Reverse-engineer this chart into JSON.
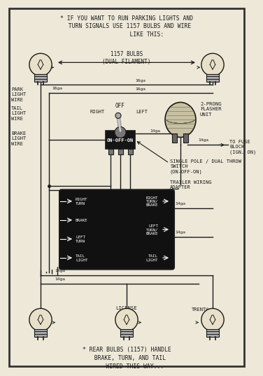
{
  "bg_color": "#ede8d8",
  "border_color": "#444444",
  "top_note": "* IF YOU WANT TO RUN PARKING LIGHTS AND\n  TURN SIGNALS USE 1157 BULBS AND WIRE\n            LIKE THIS:",
  "bulb_label": "1157 BULBS\n(DUAL FILAMENT)",
  "wire_gauge_16": "16ga",
  "wire_gauge_14": "14ga",
  "park_label": "PARK\nLIGHT\nWIRE",
  "tail_label": "TAIL\nLIGHT\nWIRE",
  "brake_label": "BRAKE\nLIGHT\nWIRE",
  "switch_label": "ON-OFF-ON",
  "off_label": "OFF",
  "right_label": "RIGHT",
  "left_label": "LEFT",
  "flasher_label": "2-PRONG\nFLASHER\nUNIT",
  "fuse_label": "TO FUSE\nBLOCK\n(IGN. ON)",
  "switch_type": "SINGLE POLE / DUAL THROW\nSWITCH\n(ON-OFF-ON)",
  "trailer_label": "TRAILER WIRING\nADAPTER",
  "box_left_r1": "RIGHT\nTURN",
  "box_left_r2": "BRAKE",
  "box_left_r3": "LEFT\nTURN",
  "box_left_r4": "TAIL\nLIGHT",
  "box_right_r1": "RIGHT\nTURN/\nBRAKE",
  "box_right_r2": "LEFT\nTURN/\nBRAKE",
  "box_right_r3": "TAIL\nLIGHT",
  "license_label": "LICENSE\nLIGHT",
  "trent_label": "TRENT©",
  "bottom_note": "* REAR BULBS (1157) HANDLE\n  BRAKE, TURN, AND TAIL\n     WIRED THIS WAY...",
  "line_color": "#1a1a1a",
  "box_fill": "#111111"
}
